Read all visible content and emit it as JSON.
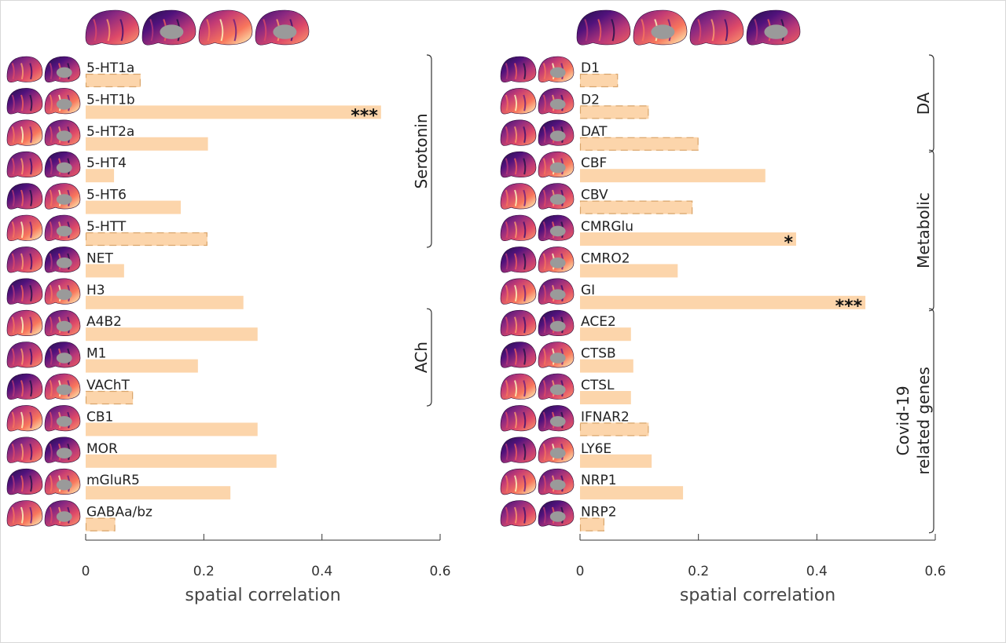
{
  "chart_data": [
    {
      "type": "bar",
      "orientation": "horizontal",
      "xlabel": "spatial correlation",
      "xlim": [
        0,
        0.6
      ],
      "xticks": [
        "0",
        "0.2",
        "0.4",
        "0.6"
      ],
      "bar_color": "#fcd5ab",
      "dash_color": "#d9a56b",
      "categories": [
        "5-HT1a",
        "5-HT1b",
        "5-HT2a",
        "5-HT4",
        "5-HT6",
        "5-HTT",
        "NET",
        "H3",
        "A4B2",
        "M1",
        "VAChT",
        "CB1",
        "MOR",
        "mGluR5",
        "GABAa/bz"
      ],
      "values": [
        0.093,
        0.5,
        0.207,
        0.048,
        0.161,
        0.206,
        0.065,
        0.267,
        0.291,
        0.19,
        0.08,
        0.291,
        0.323,
        0.245,
        0.05
      ],
      "dashed": [
        true,
        false,
        false,
        false,
        false,
        true,
        false,
        false,
        false,
        false,
        true,
        false,
        false,
        false,
        true
      ],
      "significance": [
        "",
        "***",
        "",
        "",
        "",
        "",
        "",
        "",
        "",
        "",
        "",
        "",
        "",
        "",
        ""
      ],
      "groups": [
        {
          "label": "Serotonin",
          "from": "5-HT1a",
          "to": "5-HTT"
        },
        {
          "label": "ACh",
          "from": "A4B2",
          "to": "VAChT"
        }
      ]
    },
    {
      "type": "bar",
      "orientation": "horizontal",
      "xlabel": "spatial correlation",
      "xlim": [
        0,
        0.6
      ],
      "xticks": [
        "0",
        "0.2",
        "0.4",
        "0.6"
      ],
      "bar_color": "#fcd5ab",
      "dash_color": "#d9a56b",
      "categories": [
        "D1",
        "D2",
        "DAT",
        "CBF",
        "CBV",
        "CMRGlu",
        "CMRO2",
        "GI",
        "ACE2",
        "CTSB",
        "CTSL",
        "IFNAR2",
        "LY6E",
        "NRP1",
        "NRP2"
      ],
      "values": [
        0.064,
        0.116,
        0.2,
        0.313,
        0.19,
        0.365,
        0.165,
        0.482,
        0.086,
        0.09,
        0.086,
        0.116,
        0.121,
        0.174,
        0.041
      ],
      "dashed": [
        true,
        true,
        true,
        false,
        true,
        false,
        false,
        false,
        false,
        false,
        false,
        true,
        false,
        false,
        true
      ],
      "significance": [
        "",
        "",
        "",
        "",
        "",
        "*",
        "",
        "***",
        "",
        "",
        "",
        "",
        "",
        "",
        ""
      ],
      "groups": [
        {
          "label": "DA",
          "from": "D1",
          "to": "DAT"
        },
        {
          "label": "Metabolic",
          "from": "CBF",
          "to": "GI"
        },
        {
          "label": "Covid-19\nrelated genes",
          "lines": [
            "Covid-19",
            "related genes"
          ],
          "from": "ACE2",
          "to": "NRP2"
        }
      ]
    }
  ]
}
